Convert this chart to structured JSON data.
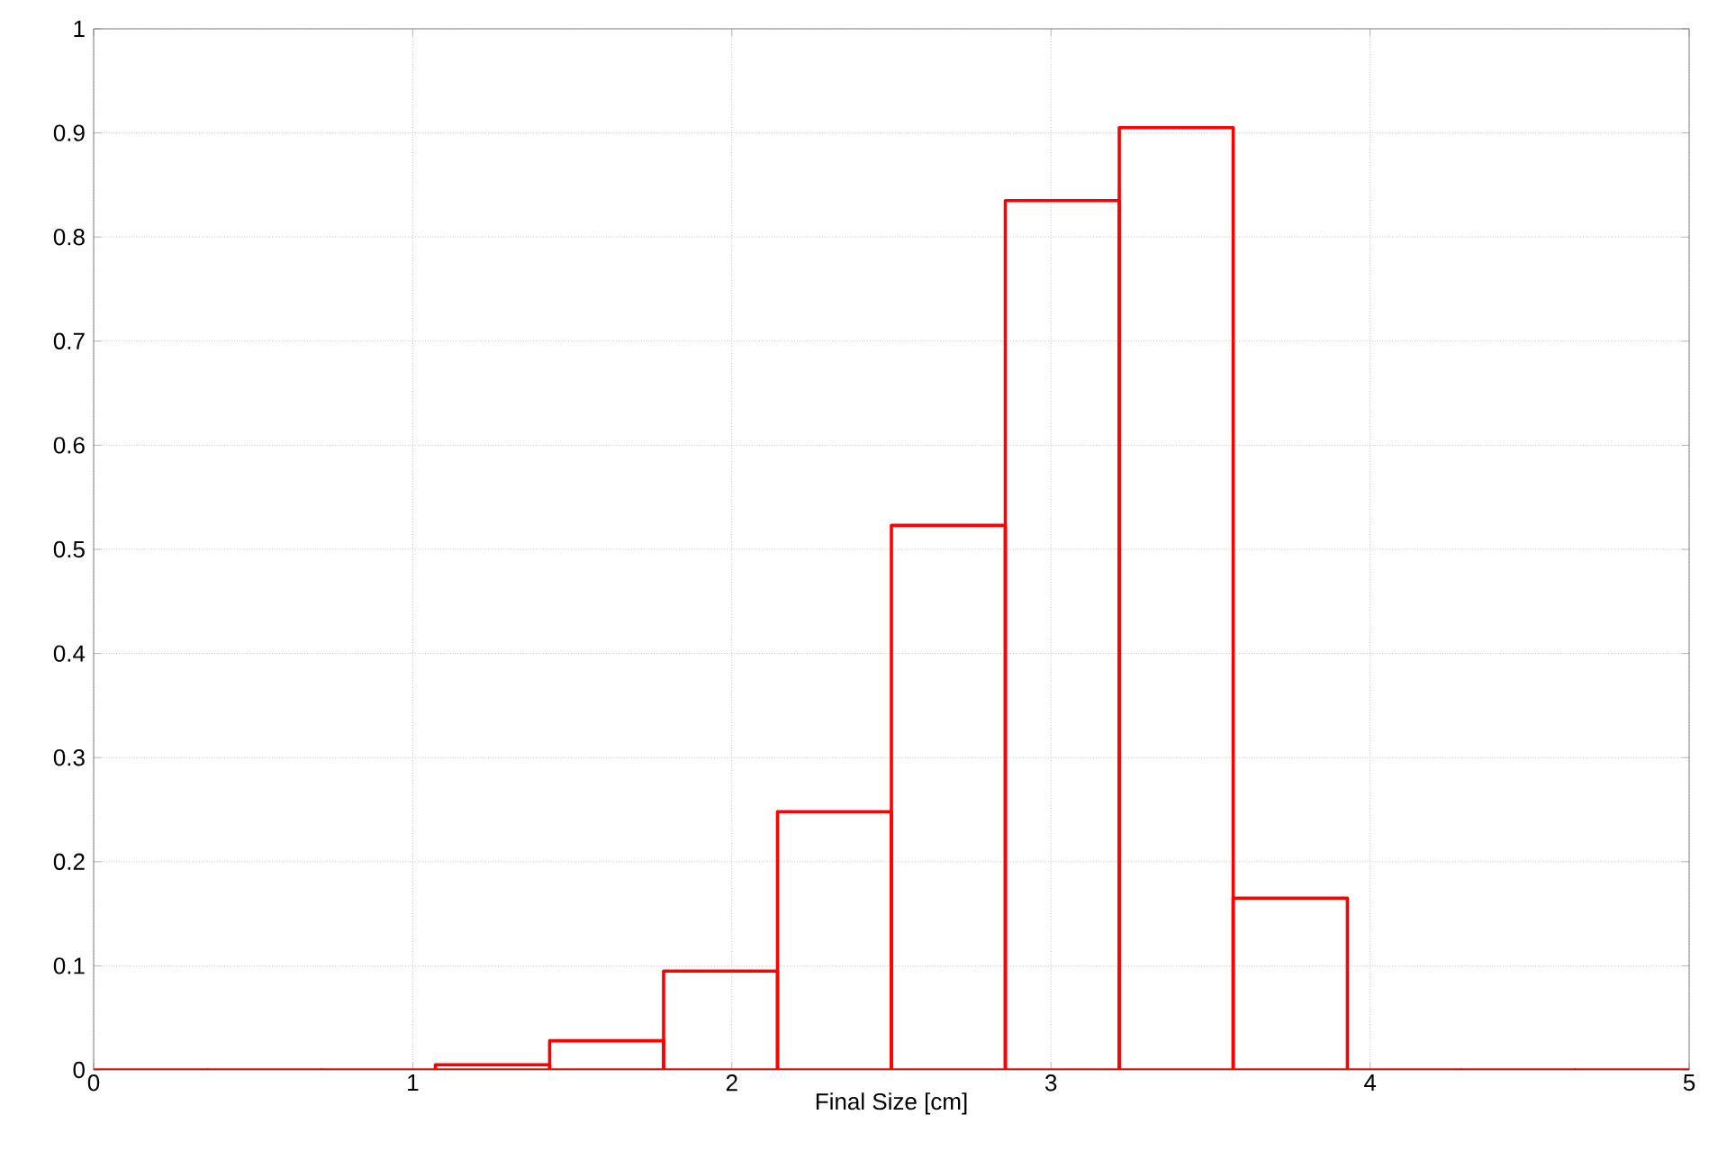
{
  "chart_data": {
    "type": "histogram",
    "xlabel": "Final Size [cm]",
    "bins": [
      0,
      0.357,
      0.714,
      1.071,
      1.429,
      1.786,
      2.143,
      2.5,
      2.857,
      3.214,
      3.571,
      3.929,
      4.286,
      4.643,
      5
    ],
    "values": [
      0,
      0,
      0,
      0.005,
      0.028,
      0.095,
      0.248,
      0.523,
      0.835,
      0.905,
      0.165,
      0,
      0,
      0
    ],
    "color": "#ff0000",
    "xlim": [
      0,
      5
    ],
    "ylim": [
      0,
      1
    ],
    "xticks": [
      0,
      1,
      2,
      3,
      4,
      5
    ],
    "yticks": [
      0,
      0.1,
      0.2,
      0.3,
      0.4,
      0.5,
      0.6,
      0.7,
      0.8,
      0.9,
      1
    ],
    "grid": true
  }
}
